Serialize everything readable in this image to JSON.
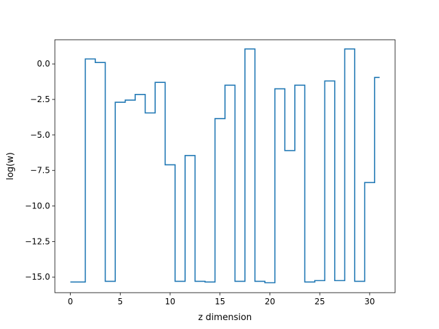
{
  "chart_data": {
    "type": "line",
    "drawstyle": "steps-mid",
    "title": "",
    "xlabel": "z dimension",
    "ylabel": "log(w)",
    "xlim": [
      -1.55,
      32.55
    ],
    "ylim": [
      -16.1,
      1.7
    ],
    "grid": false,
    "line_color": "#1f77b4",
    "x_ticks": [
      {
        "value": 0,
        "label": "0"
      },
      {
        "value": 5,
        "label": "5"
      },
      {
        "value": 10,
        "label": "10"
      },
      {
        "value": 15,
        "label": "15"
      },
      {
        "value": 20,
        "label": "20"
      },
      {
        "value": 25,
        "label": "25"
      },
      {
        "value": 30,
        "label": "30"
      }
    ],
    "y_ticks": [
      {
        "value": 0.0,
        "label": "0.0"
      },
      {
        "value": -2.5,
        "label": "−2.5"
      },
      {
        "value": -5.0,
        "label": "−5.0"
      },
      {
        "value": -7.5,
        "label": "−7.5"
      },
      {
        "value": -10.0,
        "label": "−10.0"
      },
      {
        "value": -12.5,
        "label": "−12.5"
      },
      {
        "value": -15.0,
        "label": "−15.0"
      }
    ],
    "series": [
      {
        "x": [
          0,
          1,
          2,
          3,
          4,
          5,
          6,
          7,
          8,
          9,
          10,
          11,
          12,
          13,
          14,
          15,
          16,
          17,
          18,
          19,
          20,
          21,
          22,
          23,
          24,
          25,
          26,
          27,
          28,
          29,
          30,
          31
        ],
        "values": [
          -15.35,
          -15.35,
          0.35,
          0.1,
          -15.3,
          -2.7,
          -2.55,
          -2.15,
          -3.45,
          -1.3,
          -7.1,
          -15.3,
          -6.45,
          -15.3,
          -15.35,
          -3.85,
          -1.5,
          -15.3,
          1.05,
          -15.3,
          -15.4,
          -1.75,
          -6.1,
          -1.5,
          -15.35,
          -15.25,
          -1.2,
          -15.25,
          1.05,
          -15.3,
          -8.35,
          -0.95
        ]
      }
    ]
  }
}
